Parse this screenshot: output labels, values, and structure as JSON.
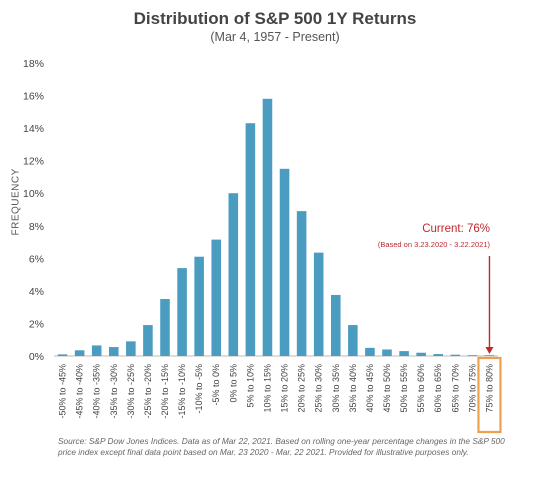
{
  "chart_data": {
    "type": "bar",
    "title": "Distribution of S&P 500 1Y Returns",
    "subtitle": "(Mar 4, 1957 - Present)",
    "xlabel": "",
    "ylabel": "FREQUENCY",
    "ylim": [
      0,
      18
    ],
    "yticks": [
      "0%",
      "2%",
      "4%",
      "6%",
      "8%",
      "10%",
      "12%",
      "14%",
      "16%",
      "18%"
    ],
    "grid": false,
    "bar_color": "#4a9cc0",
    "highlight_color": "#f0a04b",
    "annotation_color": "#c0282d",
    "categories": [
      "-50% to -45%",
      "-45% to -40%",
      "-40% to -35%",
      "-35% to -30%",
      "-30% to -25%",
      "-25% to -20%",
      "-20% to -15%",
      "-15% to -10%",
      "-10% to -5%",
      "-5% to 0%",
      "0% to 5%",
      "5% to 10%",
      "10% to 15%",
      "15% to 20%",
      "20% to 25%",
      "25% to 30%",
      "30% to 35%",
      "35% to 40%",
      "40% to 45%",
      "45% to 50%",
      "50% to 55%",
      "55% to 60%",
      "60% to 65%",
      "65% to 70%",
      "70% to 75%",
      "75% to 80%"
    ],
    "values": [
      0.1,
      0.35,
      0.65,
      0.55,
      0.9,
      1.9,
      3.5,
      5.4,
      6.1,
      7.15,
      10.0,
      14.3,
      15.8,
      11.5,
      8.9,
      6.35,
      3.75,
      1.9,
      0.5,
      0.4,
      0.3,
      0.2,
      0.12,
      0.08,
      0.05,
      0.02
    ],
    "highlight_category": "75% to 80%",
    "annotation": {
      "title": "Current: 76%",
      "subtitle": "(Based on 3.23.2020 - 3.22.2021)"
    },
    "source": "Source: S&P Dow Jones Indices. Data as of Mar 22, 2021. Based on rolling one-year percentage changes in the S&P 500 price index except final data point based on Mar. 23 2020 - Mar. 22 2021. Provided for illustrative purposes only."
  }
}
